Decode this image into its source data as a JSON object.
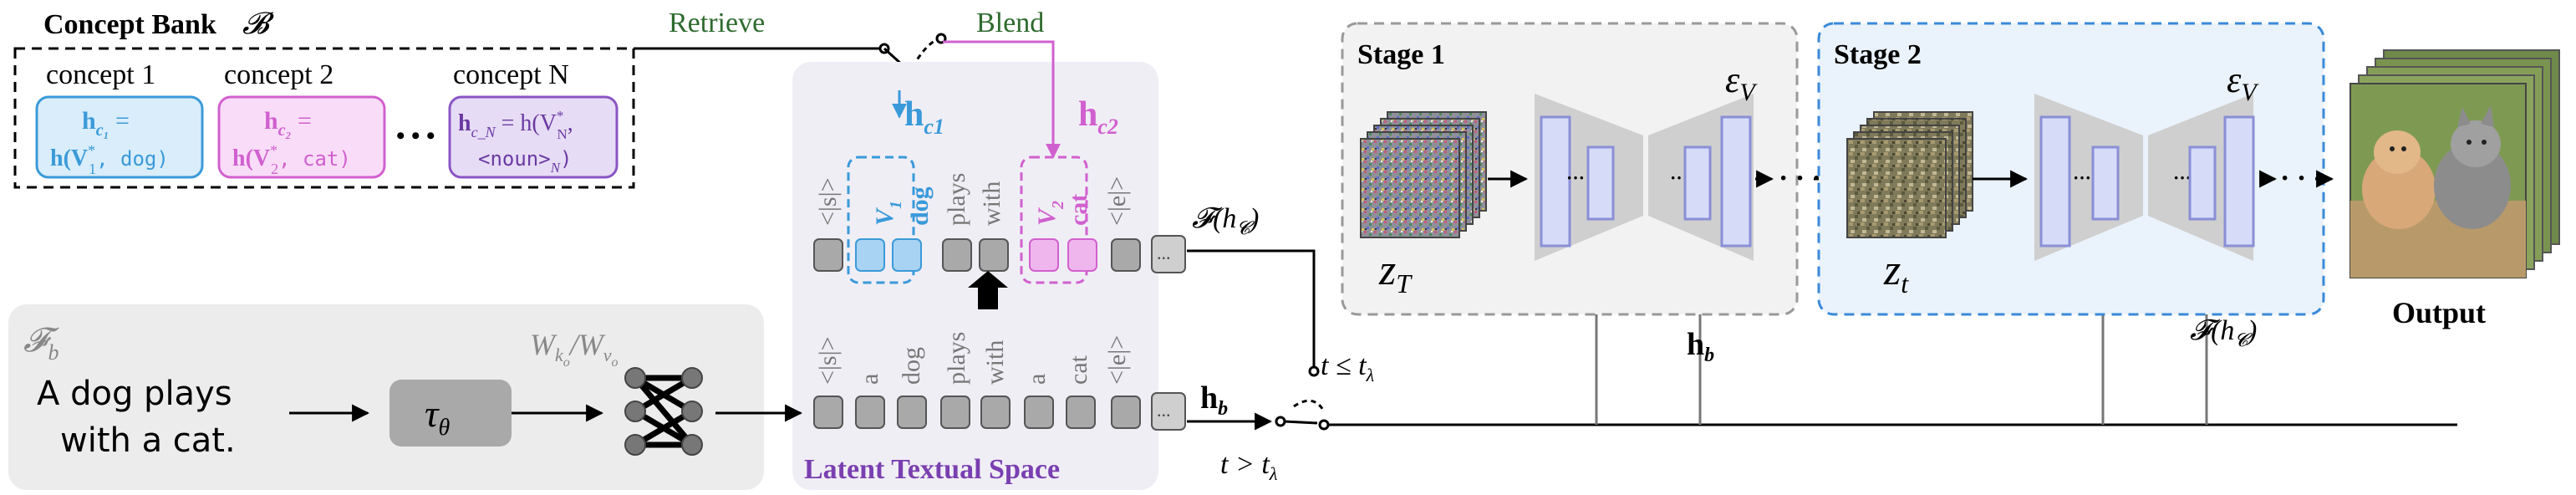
{
  "concept_bank": {
    "title": "Concept Bank",
    "symbol": "𝓑",
    "concepts": [
      {
        "name": "concept 1",
        "line1": "h",
        "sub1": "c₁",
        "eq": " =",
        "line2a": "h(V",
        "star": "*",
        "sub2": "1",
        "line2b": ", dog)"
      },
      {
        "name": "concept 2",
        "line1": "h",
        "sub1": "c₂",
        "eq": " =",
        "line2a": "h(V",
        "star": "*",
        "sub2": "2",
        "line2b": ", cat)"
      },
      {
        "name": "concept N",
        "line1a": "h",
        "sub1": "c_N",
        "line1b": " = h(V",
        "star": "*",
        "sub2": "N",
        "line1c": ",",
        "line2": "<noun>",
        "sub3": "N",
        "line2b": ")"
      }
    ],
    "ellipsis": "• • •"
  },
  "labels": {
    "retrieve": "Retrieve",
    "blend": "Blend",
    "hc1_main": "h",
    "hc1_sub": "c1",
    "hc2_main": "h",
    "hc2_sub": "c2",
    "f_hc": "𝓕(h",
    "f_hc_sub": "𝓒",
    "f_hc_close": ")",
    "hb_main": "h",
    "hb_sub": "b",
    "t_le": "t ≤ t",
    "t_le_sub": "λ",
    "t_gt": "t > t",
    "t_gt_sub": "λ",
    "latent_space": "Latent Textual Space",
    "f_b": "𝓕",
    "f_b_sub": "b",
    "prompt_line1": "A dog plays",
    "prompt_line2": "with a cat.",
    "tau": "τ",
    "tau_sub": "θ",
    "weights": "W",
    "weights_sub1": "k",
    "weights_sub1b": "o",
    "weights_mid": "/W",
    "weights_sub2": "v",
    "weights_sub2b": "o",
    "stage1": "Stage 1",
    "stage2": "Stage 2",
    "eps1": "ε",
    "eps1_sub": "V",
    "eps2": "ε",
    "eps2_sub": "V",
    "zT": "z",
    "zT_sub": "T",
    "zt": "z",
    "zt_sub": "t",
    "hb2_main": "h",
    "hb2_sub": "b",
    "f_hc2": "𝓕(h",
    "f_hc2_sub": "𝓒",
    "f_hc2_close": ")",
    "output": "Output",
    "dots": "· · ·"
  },
  "upper_tokens": [
    "<|s|>",
    "",
    "",
    "plays",
    "with",
    "",
    "",
    "<|e|>",
    "..."
  ],
  "upper_concept_words": {
    "v1": "V",
    "v1_sub": "1",
    "dog": "dog",
    "v2": "V",
    "v2_sub": "2",
    "cat": "cat"
  },
  "lower_tokens": [
    "<|s|>",
    "a",
    "dog",
    "plays",
    "with",
    "a",
    "cat",
    "<|e|>",
    "..."
  ],
  "colors": {
    "blue": "#3a9ad9",
    "blue_fill": "#a9d3f2",
    "pink": "#d160cf",
    "pink_fill": "#efb6ee",
    "purple_text": "#7a3fb0",
    "green": "#2e6b2e",
    "gray_token": "#a9a9a9",
    "panel": "#f0eef5"
  }
}
